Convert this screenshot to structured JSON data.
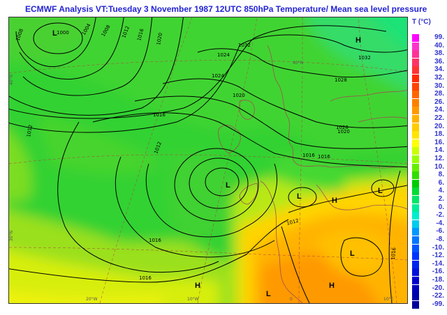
{
  "title": "ECMWF  Analysis VT:Tuesday 3 November 1987 12UTC 850hPa Temperature/  Mean sea level pressure",
  "legend": {
    "title": "T (°C)",
    "entries": [
      {
        "label": "99.",
        "color": "#ff00ff"
      },
      {
        "label": "40.",
        "color": "#ff33cc"
      },
      {
        "label": "38.",
        "color": "#ff3399"
      },
      {
        "label": "36.",
        "color": "#ff3366"
      },
      {
        "label": "34.",
        "color": "#ff3333"
      },
      {
        "label": "32.",
        "color": "#ff2a00"
      },
      {
        "label": "30.",
        "color": "#ff4400"
      },
      {
        "label": "28.",
        "color": "#ff6600"
      },
      {
        "label": "26.",
        "color": "#ff8000"
      },
      {
        "label": "24.",
        "color": "#ff9900"
      },
      {
        "label": "22.",
        "color": "#ffb300"
      },
      {
        "label": "20.",
        "color": "#ffcc00"
      },
      {
        "label": "18.",
        "color": "#ffe600"
      },
      {
        "label": "16.",
        "color": "#ffff00"
      },
      {
        "label": "14.",
        "color": "#ccff00"
      },
      {
        "label": "12.",
        "color": "#99ff00"
      },
      {
        "label": "10.",
        "color": "#66ee00"
      },
      {
        "label": "8.",
        "color": "#33dd00"
      },
      {
        "label": "6.",
        "color": "#00cc00"
      },
      {
        "label": "4.",
        "color": "#00dd33"
      },
      {
        "label": "2.",
        "color": "#00e666"
      },
      {
        "label": "0.",
        "color": "#00ee99"
      },
      {
        "label": "-2.",
        "color": "#00eecc"
      },
      {
        "label": "-4.",
        "color": "#00ccee"
      },
      {
        "label": "-6.",
        "color": "#0099ff"
      },
      {
        "label": "-8.",
        "color": "#0077ff"
      },
      {
        "label": "-10.",
        "color": "#0055ff"
      },
      {
        "label": "-12.",
        "color": "#0033ff"
      },
      {
        "label": "-14.",
        "color": "#0022ee"
      },
      {
        "label": "-16.",
        "color": "#0011dd"
      },
      {
        "label": "-18.",
        "color": "#0000cc"
      },
      {
        "label": "-20.",
        "color": "#0000bb"
      },
      {
        "label": "-22.",
        "color": "#0000aa"
      },
      {
        "label": "-99.",
        "color": "#000099"
      }
    ]
  },
  "map": {
    "isobar_labels": [
      "1008",
      "1000",
      "1004",
      "1008",
      "1012",
      "1016",
      "1020",
      "1024",
      "1028",
      "1032",
      "1024",
      "1020",
      "1016",
      "1012",
      "1012",
      "1016",
      "1016",
      "1032",
      "1028",
      "1020",
      "1016",
      "1012",
      "1016",
      "1016"
    ],
    "system_letters": [
      "L",
      "H",
      "L",
      "L",
      "H",
      "L",
      "L",
      "H",
      "H",
      "L"
    ],
    "lon_ticks": [
      "20°W",
      "10°W",
      "0",
      "10°E"
    ],
    "lat_ticks": [
      "40°N",
      "30°N",
      "40°N"
    ]
  }
}
